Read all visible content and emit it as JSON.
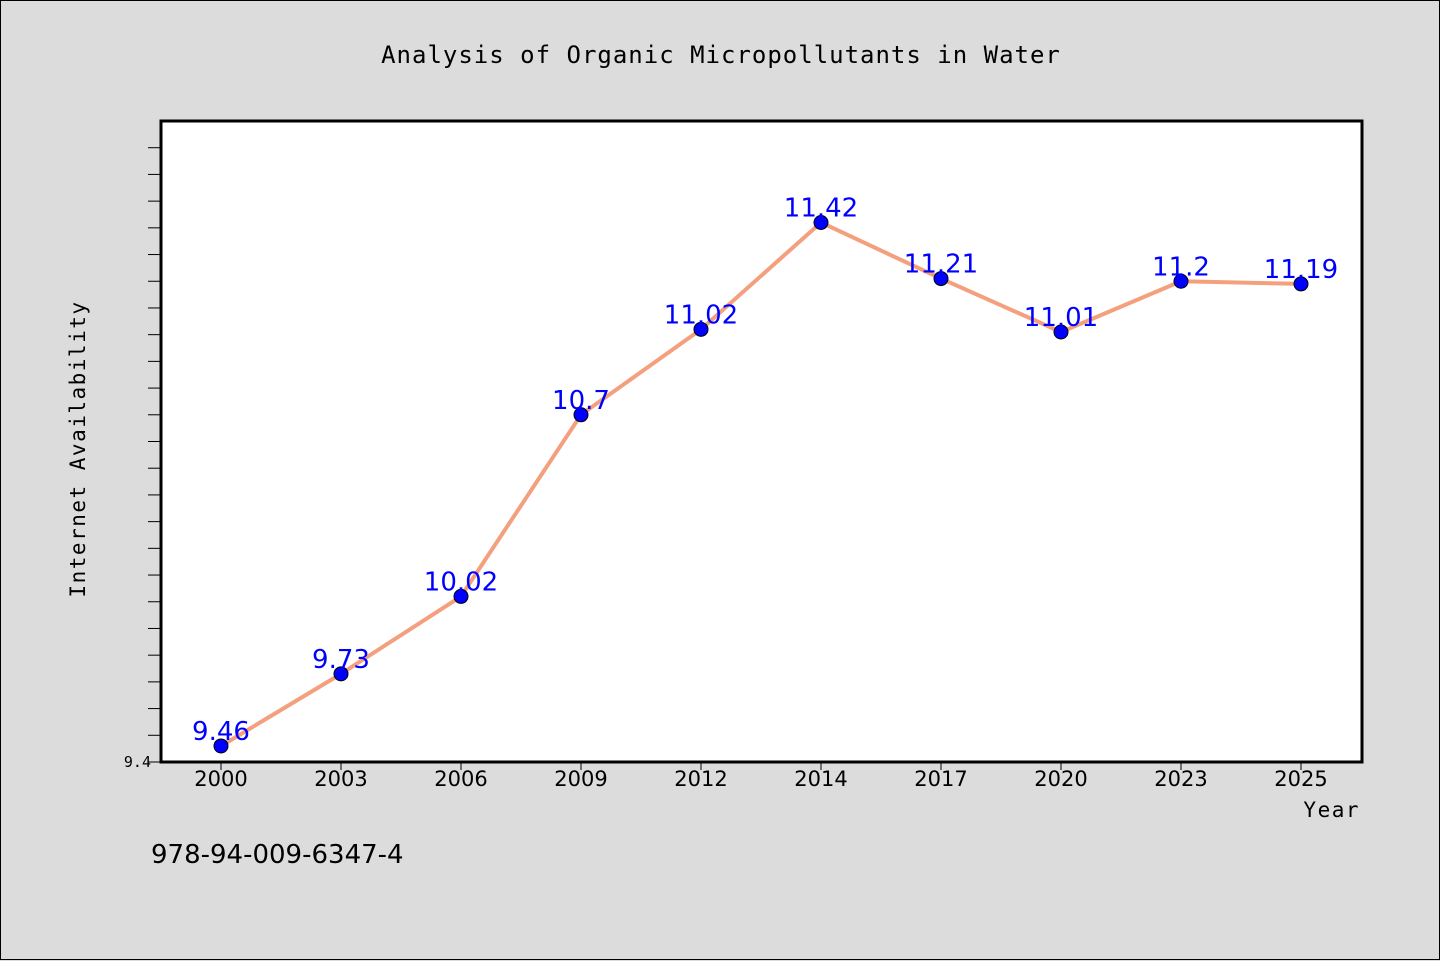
{
  "chart_data": {
    "type": "line",
    "title": "Analysis of Organic Micropollutants in Water",
    "xlabel": "Year",
    "ylabel": "Internet Availability",
    "categories": [
      "2000",
      "2003",
      "2006",
      "2009",
      "2012",
      "2014",
      "2017",
      "2020",
      "2023",
      "2025"
    ],
    "series": [
      {
        "values": [
          9.46,
          9.73,
          10.02,
          10.7,
          11.02,
          11.42,
          11.21,
          11.01,
          11.2,
          11.19
        ],
        "labels": [
          "9.46",
          "9.73",
          "10.02",
          "10.7",
          "11.02",
          "11.42",
          "11.21",
          "11.01",
          "11.2",
          "11.19"
        ],
        "line_color": "#f4a07e",
        "marker_color": "#0000ff"
      }
    ],
    "ytick_labels": [
      "9.4"
    ],
    "ylim": [
      9.4,
      11.8
    ],
    "grid": false,
    "legend": "none"
  },
  "footer": {
    "isbn": "978-94-009-6347-4"
  }
}
